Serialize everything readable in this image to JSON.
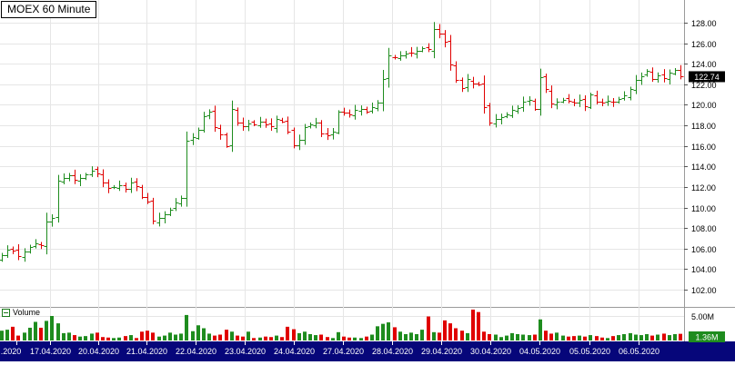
{
  "title": "MOEX 60 Minute",
  "volume_panel": {
    "label": "Volume",
    "max_tick": "5.00M",
    "current_badge": "1.36M"
  },
  "price_badge": "122.74",
  "colors": {
    "up": "#1e8c1e",
    "down": "#e00000",
    "grid": "#e6e6e6",
    "axis_bar": "#06067a",
    "axis_text": "#ffffff",
    "badge_bg": "#000000",
    "volume_badge_bg": "#1e8c1e"
  },
  "chart_data": {
    "type": "bar",
    "subtype": "ohlc",
    "ylim": [
      100.5,
      129.5
    ],
    "y_ticks": [
      "102.00",
      "104.00",
      "106.00",
      "108.00",
      "110.00",
      "112.00",
      "114.00",
      "116.00",
      "118.00",
      "120.00",
      "122.00",
      "124.00",
      "126.00",
      "128.00"
    ],
    "x_labels": [
      ".2020",
      "17.04.2020",
      "20.04.2020",
      "21.04.2020",
      "22.04.2020",
      "23.04.2020",
      "24.04.2020",
      "27.04.2020",
      "28.04.2020",
      "29.04.2020",
      "30.04.2020",
      "04.05.2020",
      "05.05.2020",
      "06.05.2020"
    ],
    "closes": [
      105.4,
      105.9,
      105.8,
      105.3,
      105.7,
      106.2,
      106.5,
      106.3,
      108.6,
      109.0,
      112.6,
      112.9,
      113.1,
      112.7,
      112.9,
      113.2,
      113.6,
      113.3,
      112.4,
      111.9,
      112.0,
      112.2,
      111.8,
      112.4,
      112.1,
      111.0,
      110.6,
      108.7,
      109.0,
      109.3,
      109.8,
      110.5,
      110.9,
      116.5,
      116.9,
      117.6,
      118.9,
      119.3,
      117.8,
      117.1,
      116.0,
      119.6,
      118.3,
      117.9,
      118.2,
      118.1,
      118.4,
      118.1,
      117.9,
      118.6,
      118.4,
      117.4,
      116.1,
      116.6,
      117.8,
      118.1,
      118.3,
      117.2,
      117.0,
      117.4,
      119.3,
      119.2,
      119.1,
      119.5,
      119.6,
      119.3,
      119.8,
      120.2,
      122.5,
      124.8,
      124.6,
      124.8,
      125.0,
      125.1,
      125.3,
      125.5,
      125.4,
      127.4,
      126.9,
      126.1,
      123.9,
      122.4,
      121.6,
      122.5,
      122.1,
      122.0,
      119.8,
      118.3,
      118.6,
      118.8,
      119.1,
      119.5,
      119.7,
      120.3,
      120.5,
      119.6,
      122.7,
      121.5,
      120.1,
      120.3,
      120.5,
      120.4,
      120.2,
      120.5,
      119.9,
      121.0,
      120.3,
      120.2,
      120.4,
      120.3,
      120.6,
      120.9,
      121.5,
      122.4,
      122.8,
      123.3,
      122.5,
      122.9,
      122.6,
      123.1,
      123.4,
      122.74
    ],
    "volume_max": 5.0,
    "volumes": [
      2.0,
      2.2,
      2.8,
      1.0,
      1.6,
      2.6,
      3.8,
      2.6,
      4.0,
      5.0,
      3.5,
      1.5,
      1.6,
      1.1,
      0.8,
      0.9,
      1.4,
      1.6,
      0.7,
      0.6,
      0.5,
      0.6,
      0.9,
      1.1,
      0.5,
      1.8,
      2.0,
      1.6,
      0.8,
      1.0,
      1.6,
      1.2,
      1.4,
      5.2,
      1.9,
      3.1,
      2.5,
      1.4,
      1.0,
      1.2,
      2.2,
      1.8,
      1.0,
      0.8,
      1.8,
      0.5,
      0.6,
      0.8,
      0.7,
      1.0,
      0.7,
      2.8,
      2.3,
      1.5,
      1.8,
      1.3,
      1.1,
      1.2,
      0.7,
      0.5,
      1.7,
      0.8,
      0.6,
      0.6,
      0.5,
      0.8,
      1.2,
      2.9,
      3.4,
      3.7,
      2.7,
      1.8,
      1.3,
      1.6,
      1.3,
      2.2,
      4.9,
      1.7,
      1.6,
      4.1,
      3.5,
      2.5,
      2.0,
      1.5,
      6.3,
      5.8,
      1.8,
      1.3,
      1.2,
      0.7,
      1.0,
      1.5,
      1.3,
      1.2,
      1.1,
      1.2,
      4.3,
      2.0,
      1.4,
      1.6,
      1.0,
      0.8,
      0.9,
      1.0,
      0.8,
      1.1,
      0.9,
      0.6,
      0.5,
      0.9,
      1.1,
      1.3,
      1.5,
      1.2,
      1.1,
      1.3,
      1.0,
      1.2,
      1.4,
      1.1,
      1.3,
      1.36
    ]
  }
}
